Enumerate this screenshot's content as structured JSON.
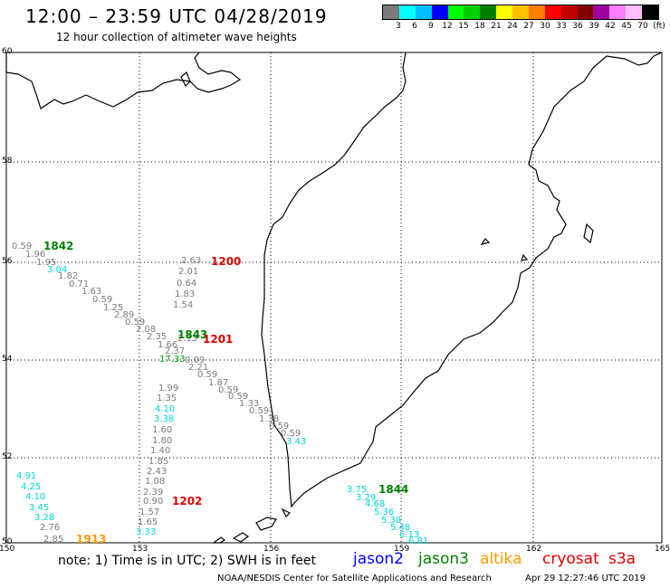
{
  "header": {
    "title": "12:00 – 23:59 UTC 04/28/2019",
    "subtitle": "12 hour collection of altimeter wave heights"
  },
  "legend": {
    "swatches": [
      "#7b7b7b",
      "#00ffff",
      "#00c0ff",
      "#0000ff",
      "#00ff00",
      "#00d000",
      "#008000",
      "#ffff00",
      "#ffc000",
      "#ff8000",
      "#ff0000",
      "#c00000",
      "#800000",
      "#a000a0",
      "#ff80ff",
      "#ffc0ff",
      "#000000"
    ],
    "labels": [
      "3",
      "6",
      "9",
      "12",
      "15",
      "18",
      "21",
      "24",
      "27",
      "30",
      "33",
      "36",
      "39",
      "42",
      "45",
      "70",
      "(ft)"
    ]
  },
  "axes": {
    "lat_labels": [
      "60",
      "58",
      "56",
      "54",
      "52",
      "50"
    ],
    "lon_labels": [
      "150",
      "153",
      "156",
      "159",
      "162",
      "165"
    ]
  },
  "observations": [
    {
      "text": "0.59",
      "color": "#7b7b7b"
    },
    {
      "text": "1.96",
      "color": "#7b7b7b"
    },
    {
      "text": "1.95",
      "color": "#7b7b7b"
    },
    {
      "text": "3.04",
      "color": "#00d8d8"
    },
    {
      "text": "1.82",
      "color": "#7b7b7b"
    },
    {
      "text": "0.71",
      "color": "#7b7b7b"
    },
    {
      "text": "1.63",
      "color": "#7b7b7b"
    },
    {
      "text": "0.59",
      "color": "#7b7b7b"
    },
    {
      "text": "1.25",
      "color": "#7b7b7b"
    },
    {
      "text": "2.89",
      "color": "#7b7b7b"
    },
    {
      "text": "0.59",
      "color": "#7b7b7b"
    },
    {
      "text": "2.08",
      "color": "#7b7b7b"
    },
    {
      "text": "2.35",
      "color": "#7b7b7b"
    },
    {
      "text": "2.13",
      "color": "#7b7b7b"
    },
    {
      "text": "1.66",
      "color": "#7b7b7b"
    },
    {
      "text": "2.37",
      "color": "#7b7b7b"
    },
    {
      "text": "17.33",
      "color": "#00a000"
    },
    {
      "text": "0.09",
      "color": "#7b7b7b"
    },
    {
      "text": "2.21",
      "color": "#7b7b7b"
    },
    {
      "text": "0.59",
      "color": "#7b7b7b"
    },
    {
      "text": "1.87",
      "color": "#7b7b7b"
    },
    {
      "text": "0.59",
      "color": "#7b7b7b"
    },
    {
      "text": "0.59",
      "color": "#7b7b7b"
    },
    {
      "text": "1.33",
      "color": "#7b7b7b"
    },
    {
      "text": "0.59",
      "color": "#7b7b7b"
    },
    {
      "text": "1.38",
      "color": "#7b7b7b"
    },
    {
      "text": "0.59",
      "color": "#7b7b7b"
    },
    {
      "text": "0.59",
      "color": "#7b7b7b"
    },
    {
      "text": "3.43",
      "color": "#00d8d8"
    },
    {
      "text": "2.63",
      "color": "#7b7b7b"
    },
    {
      "text": "2.01",
      "color": "#7b7b7b"
    },
    {
      "text": "0.64",
      "color": "#7b7b7b"
    },
    {
      "text": "1.83",
      "color": "#7b7b7b"
    },
    {
      "text": "1.54",
      "color": "#7b7b7b"
    },
    {
      "text": "1.99",
      "color": "#7b7b7b"
    },
    {
      "text": "1.35",
      "color": "#7b7b7b"
    },
    {
      "text": "4.10",
      "color": "#00d8d8"
    },
    {
      "text": "3.38",
      "color": "#00d8d8"
    },
    {
      "text": "1.60",
      "color": "#7b7b7b"
    },
    {
      "text": "1.80",
      "color": "#7b7b7b"
    },
    {
      "text": "1.40",
      "color": "#7b7b7b"
    },
    {
      "text": "1.85",
      "color": "#7b7b7b"
    },
    {
      "text": "2.43",
      "color": "#7b7b7b"
    },
    {
      "text": "1.08",
      "color": "#7b7b7b"
    },
    {
      "text": "2.39",
      "color": "#7b7b7b"
    },
    {
      "text": "0.90",
      "color": "#7b7b7b"
    },
    {
      "text": "1.57",
      "color": "#7b7b7b"
    },
    {
      "text": "1.65",
      "color": "#7b7b7b"
    },
    {
      "text": "3.33",
      "color": "#00d8d8"
    },
    {
      "text": "4.91",
      "color": "#00d8d8"
    },
    {
      "text": "4.25",
      "color": "#00d8d8"
    },
    {
      "text": "4.10",
      "color": "#00d8d8"
    },
    {
      "text": "3.45",
      "color": "#00d8d8"
    },
    {
      "text": "3.28",
      "color": "#00d8d8"
    },
    {
      "text": "2.76",
      "color": "#7b7b7b"
    },
    {
      "text": "2.85",
      "color": "#7b7b7b"
    },
    {
      "text": "3.75",
      "color": "#00d8d8"
    },
    {
      "text": "3.29",
      "color": "#00d8d8"
    },
    {
      "text": "4.68",
      "color": "#00d8d8"
    },
    {
      "text": "5.36",
      "color": "#00d8d8"
    },
    {
      "text": "5.38",
      "color": "#00d8d8"
    },
    {
      "text": "5.48",
      "color": "#00d8d8"
    },
    {
      "text": "6.13",
      "color": "#00d8d8"
    },
    {
      "text": "6.81",
      "color": "#00d8d8"
    }
  ],
  "time_labels": [
    {
      "text": "1842",
      "color": "#008000"
    },
    {
      "text": "1200",
      "color": "#e00000"
    },
    {
      "text": "1843",
      "color": "#008000"
    },
    {
      "text": "1201",
      "color": "#e00000"
    },
    {
      "text": "1202",
      "color": "#e00000"
    },
    {
      "text": "1844",
      "color": "#008000"
    },
    {
      "text": "1913",
      "color": "#ff9900"
    }
  ],
  "footer": {
    "note": "note:  1) Time is in UTC;  2) SWH is in feet",
    "missions": [
      {
        "name": "jason2",
        "color": "#0000ff"
      },
      {
        "name": "jason3",
        "color": "#008000"
      },
      {
        "name": "altika",
        "color": "#ff9900"
      },
      {
        "name": "cryosat",
        "color": "#e00000"
      },
      {
        "name": "s3a",
        "color": "#e00000"
      }
    ],
    "credit": "NOAA/NESDIS Center for Satellite Applications and Research",
    "timestamp": "Apr 29 12:27:46 UTC 2019"
  }
}
